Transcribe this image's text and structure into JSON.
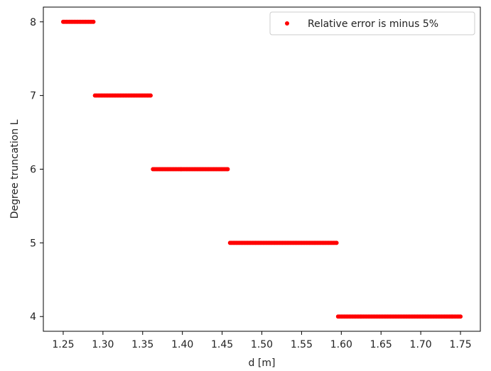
{
  "chart_data": {
    "type": "scatter",
    "xlabel": "d [m]",
    "ylabel": "Degree truncation L",
    "xlim": [
      1.225,
      1.775
    ],
    "ylim": [
      3.8,
      8.2
    ],
    "x_ticks": [
      1.25,
      1.3,
      1.35,
      1.4,
      1.45,
      1.5,
      1.55,
      1.6,
      1.65,
      1.7,
      1.75
    ],
    "x_tick_labels": [
      "1.25",
      "1.30",
      "1.35",
      "1.40",
      "1.45",
      "1.50",
      "1.55",
      "1.60",
      "1.65",
      "1.70",
      "1.75"
    ],
    "y_ticks": [
      4,
      5,
      6,
      7,
      8
    ],
    "y_tick_labels": [
      "4",
      "5",
      "6",
      "7",
      "8"
    ],
    "grid": false,
    "legend_position": "top-right",
    "series": [
      {
        "name": "Relative error is minus 5%",
        "color": "#ff0000",
        "segments": [
          {
            "y": 8,
            "x_start": 1.25,
            "x_end": 1.288
          },
          {
            "y": 7,
            "x_start": 1.29,
            "x_end": 1.36
          },
          {
            "y": 6,
            "x_start": 1.363,
            "x_end": 1.457
          },
          {
            "y": 5,
            "x_start": 1.46,
            "x_end": 1.593
          },
          {
            "y": 4,
            "x_start": 1.596,
            "x_end": 1.75
          }
        ],
        "x_step": 0.002
      }
    ]
  }
}
